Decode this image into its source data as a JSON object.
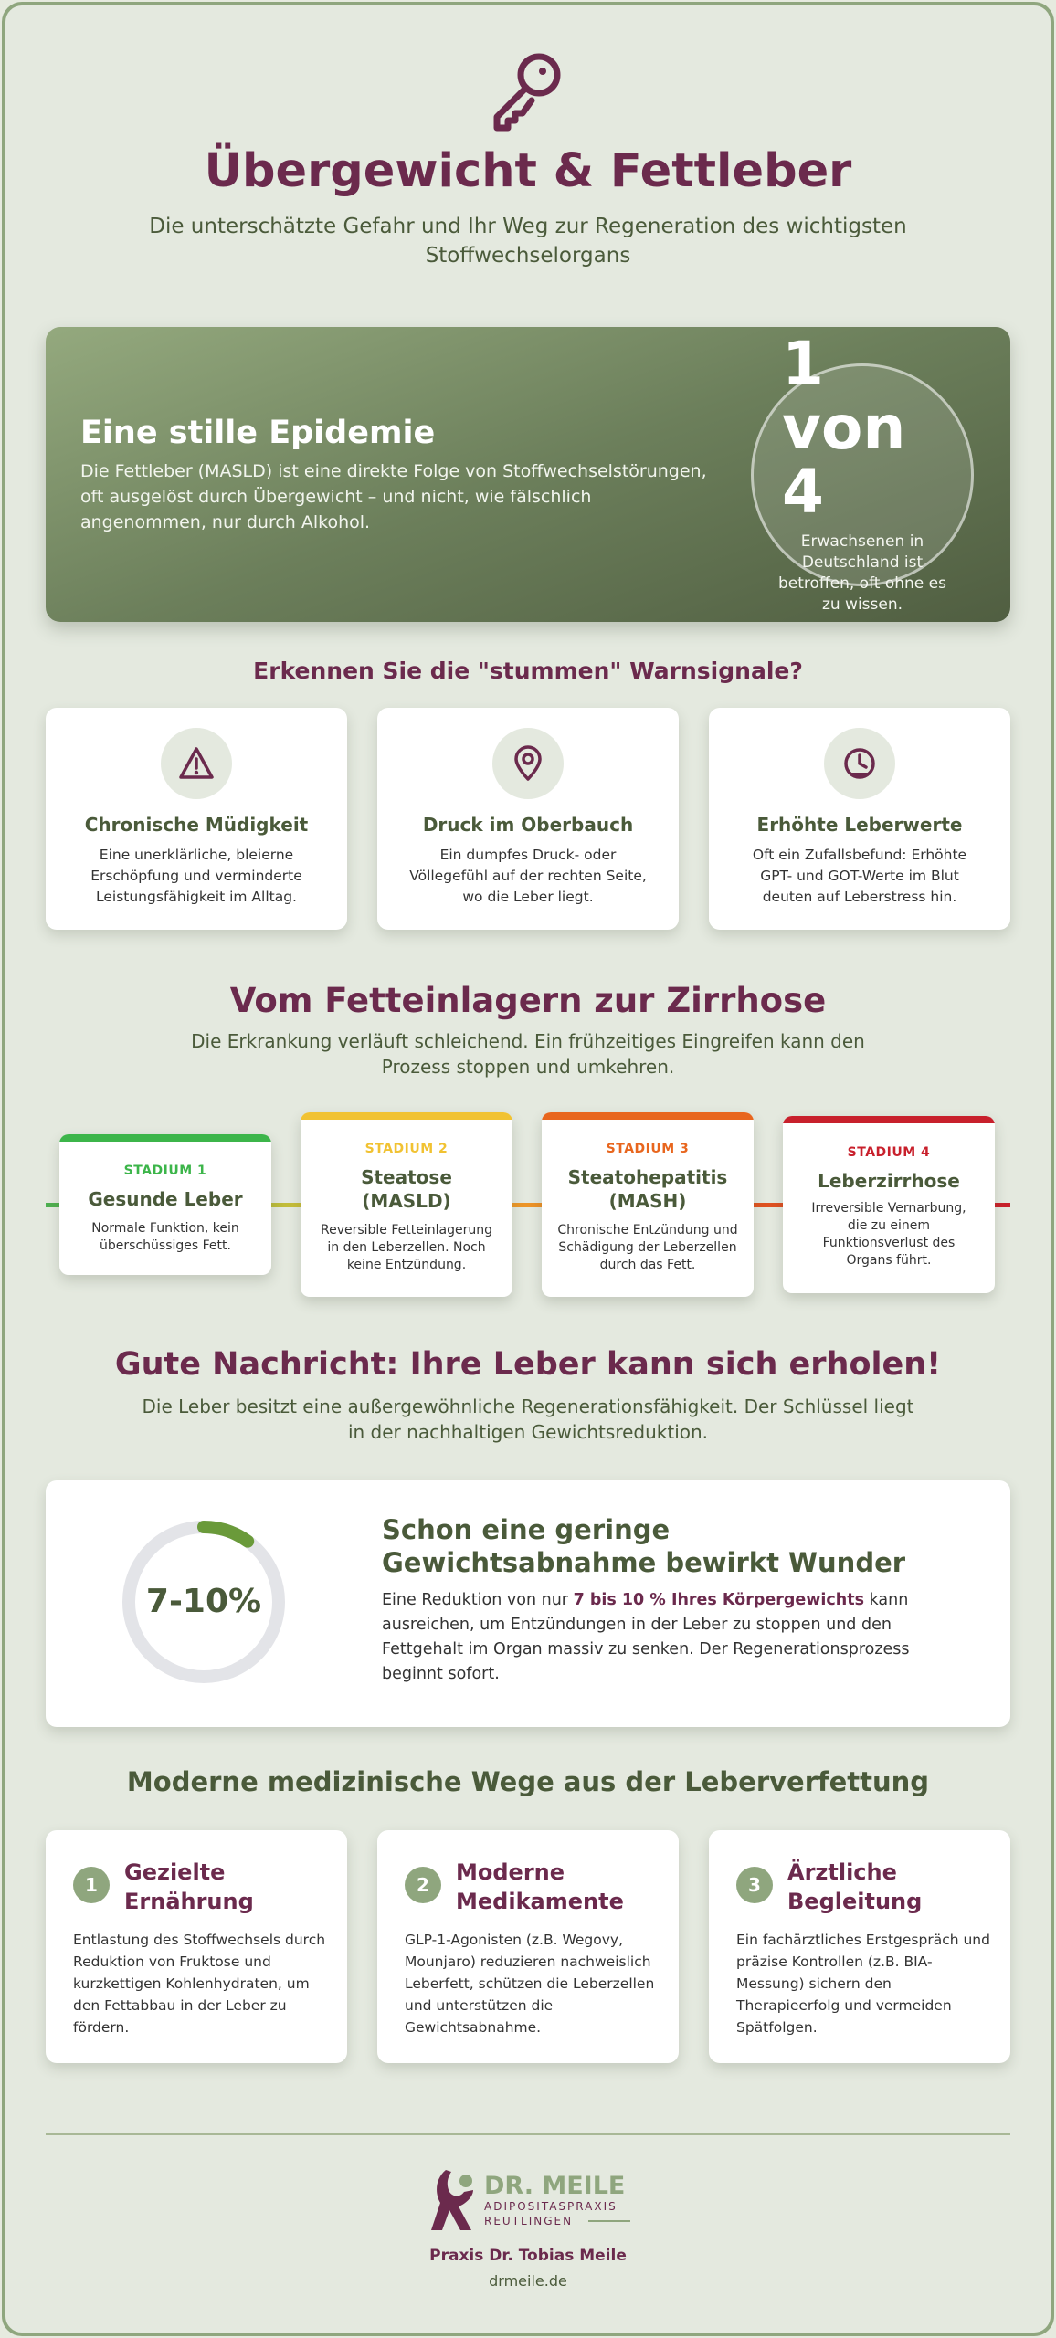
{
  "header": {
    "icon": "key-icon",
    "title": "Übergewicht & Fettleber",
    "subtitle": "Die unterschätzte Gefahr und Ihr Weg zur Regeneration des wichtigsten Stoffwechselorgans"
  },
  "hero": {
    "title": "Eine stille Epidemie",
    "text": "Die Fettleber (MASLD) ist eine direkte Folge von Stoffwechselstörungen, oft ausgelöst durch Übergewicht – und nicht, wie fälschlich angenommen, nur durch Alkohol.",
    "stat_big": "1 von 4",
    "stat_small": "Erwachsenen in Deutschland ist betroffen, oft ohne es zu wissen."
  },
  "warnings": {
    "title": "Erkennen Sie die \"stummen\" Warnsignale?",
    "items": [
      {
        "icon": "warning-icon",
        "title": "Chronische Müdigkeit",
        "text": "Eine unerklärliche, bleierne Erschöpfung und verminderte Leistungsfähigkeit im Alltag."
      },
      {
        "icon": "location-pin-icon",
        "title": "Druck im Oberbauch",
        "text": "Ein dumpfes Druck- oder Völlegefühl auf der rechten Seite, wo die Leber liegt."
      },
      {
        "icon": "clock-icon",
        "title": "Erhöhte Leberwerte",
        "text": "Oft ein Zufallsbefund: Erhöhte GPT- und GOT-Werte im Blut deuten auf Leberstress hin."
      }
    ]
  },
  "progression": {
    "title": "Vom Fetteinlagern zur Zirrhose",
    "subtitle": "Die Erkrankung verläuft schleichend. Ein frühzeitiges Eingreifen kann den Prozess stoppen und umkehren.",
    "stages": [
      {
        "label": "STADIUM 1",
        "name": "Gesunde Leber",
        "desc": "Normale Funktion, kein überschüssiges Fett.",
        "color": "#3cb54a"
      },
      {
        "label": "STADIUM 2",
        "name": "Steatose (MASLD)",
        "desc": "Reversible Fetteinlagerung in den Leberzellen. Noch keine Entzündung.",
        "color": "#f1c232"
      },
      {
        "label": "STADIUM 3",
        "name": "Steatohepatitis (MASH)",
        "desc": "Chronische Entzündung und Schädigung der Leberzellen durch das Fett.",
        "color": "#e8661e"
      },
      {
        "label": "STADIUM 4",
        "name": "Leberzirrhose",
        "desc": "Irreversible Vernarbung, die zu einem Funktionsverlust des Organs führt.",
        "color": "#c8202c"
      }
    ]
  },
  "regeneration": {
    "title": "Gute Nachricht: Ihre Leber kann sich erholen!",
    "subtitle": "Die Leber besitzt eine außergewöhnliche Regenerationsfähigkeit. Der Schlüssel liegt in der nachhaltigen Gewichtsreduktion.",
    "ring_label": "7-10%",
    "ring_fraction": 0.1,
    "heading": "Schon eine geringe Gewichtsabnahme bewirkt Wunder",
    "text_before": "Eine Reduktion von nur ",
    "text_bold": "7 bis 10 % Ihres Körpergewichts",
    "text_after": " kann ausreichen, um Entzündungen in der Leber zu stoppen und den Fettgehalt im Organ massiv zu senken. Der Regenerationsprozess beginnt sofort."
  },
  "ways": {
    "title": "Moderne medizinische Wege aus der Leberverfettung",
    "items": [
      {
        "num": "1",
        "title": "Gezielte Ernährung",
        "text": "Entlastung des Stoffwechsels durch Reduktion von Fruktose und kurzkettigen Kohlenhydraten, um den Fettabbau in der Leber zu fördern."
      },
      {
        "num": "2",
        "title": "Moderne Medikamente",
        "text": "GLP-1-Agonisten (z.B. Wegovy, Mounjaro) reduzieren nachweislich Leberfett, schützen die Leberzellen und unterstützen die Gewichtsabnahme."
      },
      {
        "num": "3",
        "title": "Ärztliche Begleitung",
        "text": "Ein fachärztliches Erstgespräch und präzise Kontrollen (z.B. BIA-Messung) sichern den Therapieerfolg und vermeiden Spätfolgen."
      }
    ]
  },
  "footer": {
    "logo_name": "DR. MEILE",
    "logo_line1": "ADIPOSITASPRAXIS",
    "logo_line2": "REUTLINGEN",
    "practice": "Praxis Dr. Tobias Meile",
    "url": "drmeile.de"
  },
  "colors": {
    "plum": "#6b2a4d",
    "olive": "#4a5a3a",
    "sage": "#8fa67e",
    "background": "#e4e9df"
  }
}
